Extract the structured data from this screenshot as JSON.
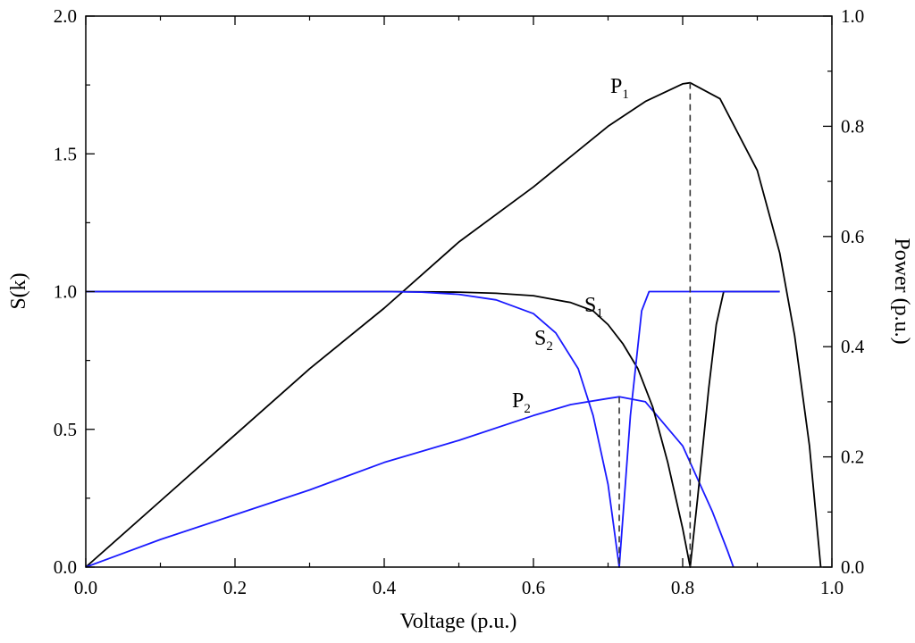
{
  "chart_data": {
    "type": "line",
    "x_label": "Voltage (p.u.)",
    "y_label_left": "S(k)",
    "y_label_right": "Power (p.u.)",
    "xlim": [
      0,
      1
    ],
    "ylim_left": [
      0,
      2
    ],
    "ylim_right": [
      0,
      1
    ],
    "x_ticks": [
      "0.0",
      "0.2",
      "0.4",
      "0.6",
      "0.8",
      "1.0"
    ],
    "y_left_ticks": [
      "0.0",
      "0.5",
      "1.0",
      "1.5",
      "2.0"
    ],
    "y_right_ticks": [
      "0.0",
      "0.2",
      "0.4",
      "0.6",
      "0.8",
      "1.0"
    ],
    "grid": false,
    "legend": "none",
    "series": [
      {
        "name": "P1",
        "axis": "right",
        "color": "#000000",
        "x": [
          0,
          0.1,
          0.2,
          0.3,
          0.4,
          0.5,
          0.6,
          0.7,
          0.75,
          0.8,
          0.81,
          0.85,
          0.9,
          0.93,
          0.95,
          0.97,
          0.985
        ],
        "y": [
          0,
          0.12,
          0.24,
          0.36,
          0.47,
          0.59,
          0.69,
          0.8,
          0.845,
          0.877,
          0.879,
          0.85,
          0.72,
          0.57,
          0.42,
          0.22,
          0
        ]
      },
      {
        "name": "P2",
        "axis": "right",
        "color": "#1a1aff",
        "x": [
          0,
          0.1,
          0.2,
          0.3,
          0.4,
          0.5,
          0.6,
          0.65,
          0.7,
          0.715,
          0.75,
          0.8,
          0.84,
          0.86,
          0.868
        ],
        "y": [
          0,
          0.05,
          0.095,
          0.14,
          0.19,
          0.23,
          0.275,
          0.295,
          0.306,
          0.309,
          0.3,
          0.22,
          0.1,
          0.03,
          0
        ]
      },
      {
        "name": "S1",
        "axis": "left",
        "color": "#000000",
        "x": [
          0,
          0.4,
          0.5,
          0.55,
          0.6,
          0.65,
          0.68,
          0.7,
          0.72,
          0.74,
          0.76,
          0.78,
          0.8,
          0.81,
          0.82,
          0.835,
          0.845,
          0.855,
          0.93
        ],
        "y": [
          1,
          1,
          0.998,
          0.994,
          0.985,
          0.96,
          0.93,
          0.88,
          0.81,
          0.72,
          0.58,
          0.38,
          0.14,
          0,
          0.25,
          0.65,
          0.88,
          1,
          1
        ]
      },
      {
        "name": "S2",
        "axis": "left",
        "color": "#1a1aff",
        "x": [
          0,
          0.4,
          0.45,
          0.5,
          0.55,
          0.6,
          0.63,
          0.66,
          0.68,
          0.7,
          0.715,
          0.73,
          0.745,
          0.755,
          0.8,
          0.93
        ],
        "y": [
          1,
          1,
          0.998,
          0.99,
          0.97,
          0.92,
          0.85,
          0.72,
          0.55,
          0.3,
          0,
          0.55,
          0.93,
          1,
          1,
          1
        ]
      }
    ],
    "markers": [
      {
        "x": 0.81,
        "y_right": 0.879,
        "color": "#333333"
      },
      {
        "x": 0.715,
        "y_right": 0.309,
        "color": "#333333"
      }
    ]
  }
}
